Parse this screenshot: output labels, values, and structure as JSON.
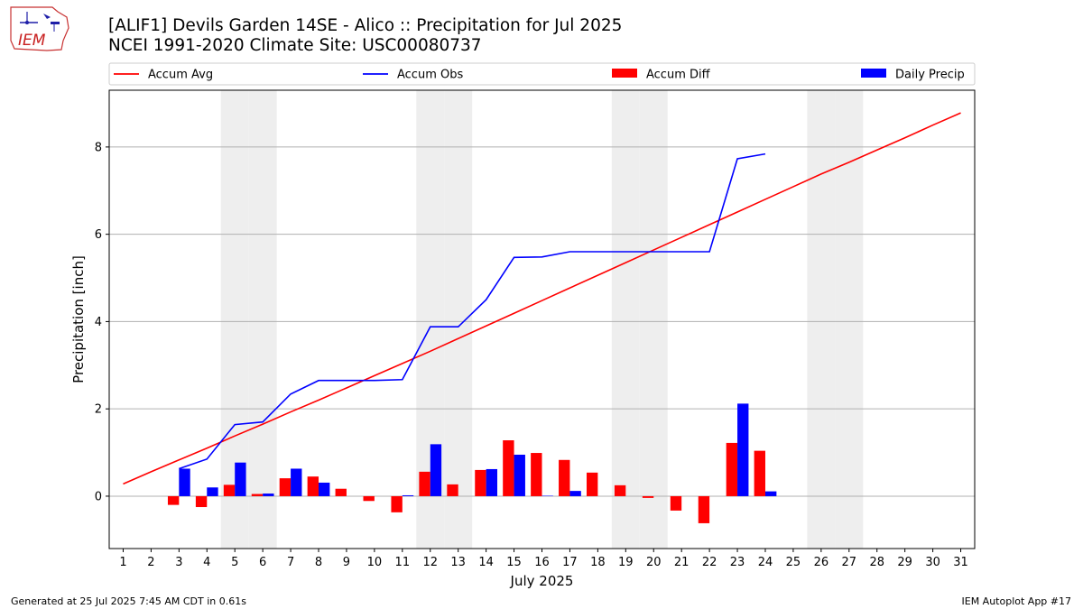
{
  "header": {
    "title_line1": "[ALIF1] Devils Garden 14SE - Alico :: Precipitation for Jul 2025",
    "title_line2": "NCEI 1991-2020 Climate Site: USC00080737"
  },
  "logo": {
    "text": "IEM"
  },
  "footer": {
    "generated": "Generated at 25 Jul 2025 7:45 AM CDT in 0.61s",
    "app": "IEM Autoplot App #17"
  },
  "colors": {
    "accum_avg": "#ff0000",
    "accum_obs": "#0000ff",
    "accum_diff": "#ff0000",
    "daily_precip": "#0000ff",
    "weekend_shade": "#eeeeee",
    "grid": "#b0b0b0"
  },
  "chart_data": {
    "type": "bar",
    "xlabel": "July 2025",
    "ylabel": "Precipitation [inch]",
    "xlim": [
      0.5,
      31.5
    ],
    "ylim": [
      -1.2,
      9.3
    ],
    "yticks": [
      0,
      2,
      4,
      6,
      8
    ],
    "grid": "y",
    "legend_placement": "top",
    "weekend_days": [
      5,
      6,
      12,
      13,
      19,
      20,
      26,
      27
    ],
    "days": [
      1,
      2,
      3,
      4,
      5,
      6,
      7,
      8,
      9,
      10,
      11,
      12,
      13,
      14,
      15,
      16,
      17,
      18,
      19,
      20,
      21,
      22,
      23,
      24,
      25,
      26,
      27,
      28,
      29,
      30,
      31
    ],
    "series": [
      {
        "name": "Accum Avg",
        "kind": "line",
        "x": [
          1,
          2,
          3,
          4,
          5,
          6,
          7,
          8,
          9,
          10,
          11,
          12,
          13,
          14,
          15,
          16,
          17,
          18,
          19,
          20,
          21,
          22,
          23,
          24,
          25,
          26,
          27,
          28,
          29,
          30,
          31
        ],
        "values": [
          0.28,
          0.56,
          0.83,
          1.1,
          1.38,
          1.65,
          1.93,
          2.2,
          2.48,
          2.76,
          3.04,
          3.32,
          3.61,
          3.9,
          4.19,
          4.48,
          4.77,
          5.06,
          5.35,
          5.64,
          5.93,
          6.22,
          6.51,
          6.8,
          7.09,
          7.38,
          7.65,
          7.93,
          8.21,
          8.5,
          8.78
        ]
      },
      {
        "name": "Accum Obs",
        "kind": "line",
        "x": [
          3,
          4,
          5,
          6,
          7,
          8,
          9,
          10,
          11,
          12,
          13,
          14,
          15,
          16,
          17,
          18,
          19,
          20,
          21,
          22,
          23,
          24
        ],
        "values": [
          0.63,
          0.85,
          1.64,
          1.7,
          2.34,
          2.65,
          2.65,
          2.65,
          2.67,
          3.88,
          3.88,
          4.5,
          5.47,
          5.48,
          5.6,
          5.6,
          5.6,
          5.6,
          5.6,
          5.6,
          7.73,
          7.84
        ]
      },
      {
        "name": "Accum Diff",
        "kind": "bar",
        "x": [
          3,
          4,
          5,
          6,
          7,
          8,
          9,
          10,
          11,
          12,
          13,
          14,
          15,
          16,
          17,
          18,
          19,
          20,
          21,
          22,
          23,
          24
        ],
        "values": [
          -0.2,
          -0.25,
          0.26,
          0.05,
          0.41,
          0.45,
          0.17,
          -0.11,
          -0.37,
          0.56,
          0.27,
          0.6,
          1.28,
          0.99,
          0.83,
          0.54,
          0.25,
          -0.04,
          -0.33,
          -0.62,
          1.22,
          1.04
        ]
      },
      {
        "name": "Daily Precip",
        "kind": "bar",
        "x": [
          3,
          4,
          5,
          6,
          7,
          8,
          9,
          10,
          11,
          12,
          13,
          14,
          15,
          16,
          17,
          18,
          19,
          20,
          21,
          22,
          23,
          24
        ],
        "values": [
          0.63,
          0.2,
          0.77,
          0.06,
          0.63,
          0.31,
          0,
          0,
          0.02,
          1.19,
          0,
          0.62,
          0.95,
          0.01,
          0.12,
          0,
          0,
          0,
          0,
          0,
          2.12,
          0.11
        ]
      }
    ]
  }
}
